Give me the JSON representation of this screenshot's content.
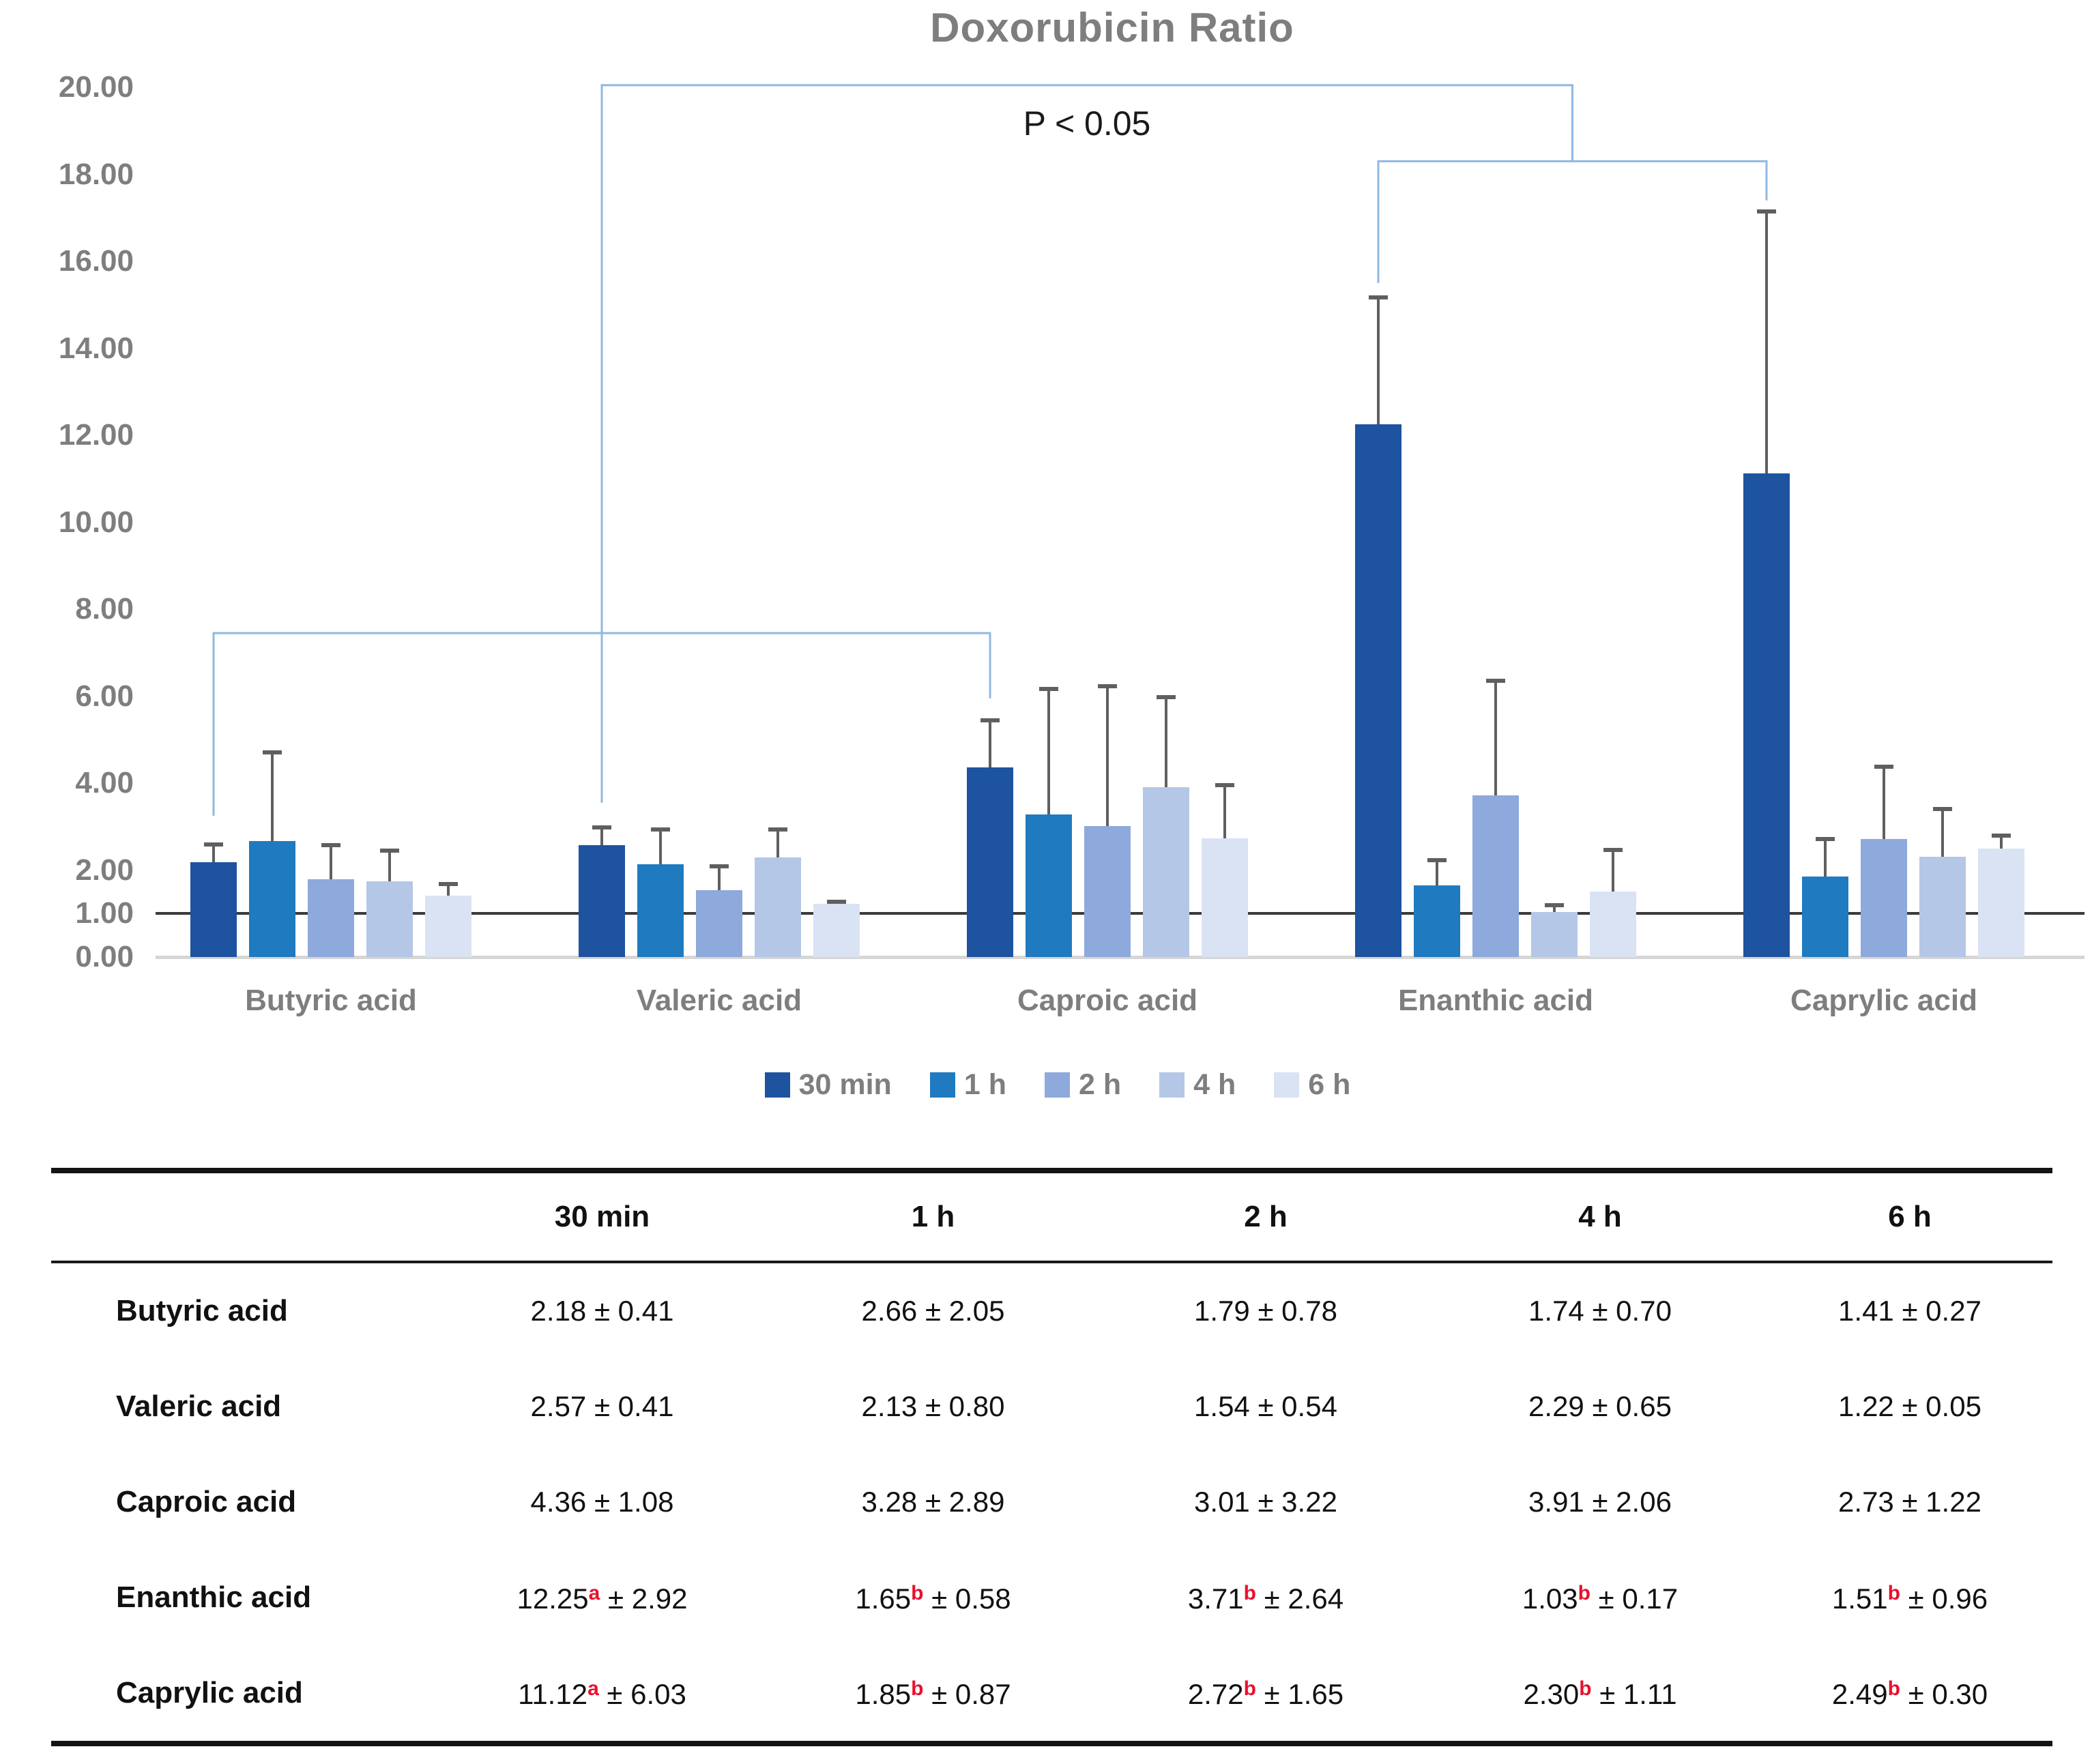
{
  "title": "Doxorubicin Ratio",
  "significance_label": "P < 0.05",
  "colors": {
    "axis_text": "#7e7e7e",
    "bracket": "#8fb8e0",
    "error_bar": "#5f5f5f",
    "reference_line": "#3a3a3a",
    "baseline": "#d6d6d6",
    "table_text": "#111111",
    "superscript": "#e8112d"
  },
  "chart_data": {
    "type": "bar",
    "title": "Doxorubicin Ratio",
    "categories": [
      "Butyric acid",
      "Valeric acid",
      "Caproic acid",
      "Enanthic acid",
      "Caprylic acid"
    ],
    "series": [
      {
        "name": "30 min",
        "color": "#1d539f",
        "values": [
          2.18,
          2.57,
          4.36,
          12.25,
          11.12
        ],
        "sd": [
          0.41,
          0.41,
          1.08,
          2.92,
          6.03
        ]
      },
      {
        "name": "1 h",
        "color": "#1f7ac0",
        "values": [
          2.66,
          2.13,
          3.28,
          1.65,
          1.85
        ],
        "sd": [
          2.05,
          0.8,
          2.89,
          0.58,
          0.87
        ]
      },
      {
        "name": "2 h",
        "color": "#8ea9db",
        "values": [
          1.79,
          1.54,
          3.01,
          3.71,
          2.72
        ],
        "sd": [
          0.78,
          0.54,
          3.22,
          2.64,
          1.65
        ]
      },
      {
        "name": "4 h",
        "color": "#b4c7e7",
        "values": [
          1.74,
          2.29,
          3.91,
          1.03,
          2.3
        ],
        "sd": [
          0.7,
          0.65,
          2.06,
          0.17,
          1.11
        ]
      },
      {
        "name": "6 h",
        "color": "#dae3f3",
        "values": [
          1.41,
          1.22,
          2.73,
          1.51,
          2.49
        ],
        "sd": [
          0.27,
          0.05,
          1.22,
          0.96,
          0.3
        ]
      }
    ],
    "y_ticks": [
      20,
      18,
      16,
      14,
      12,
      10,
      8,
      6,
      4,
      2,
      1,
      0
    ],
    "ylim": [
      0,
      20.6
    ],
    "reference_line": 1.0,
    "grid": false,
    "legend_position": "bottom",
    "error_bars": "mean + sd, upper only",
    "annotations": {
      "p_label": "P < 0.05",
      "brackets": [
        {
          "x1": {
            "cat": 0,
            "series": 0
          },
          "x2": {
            "cat": 2,
            "series": 0
          },
          "y": 7.45,
          "drop1": 3.25,
          "drop2": 5.95
        },
        {
          "x1": {
            "cat": 1,
            "series": 0
          },
          "x2_mid": [
            3,
            4
          ],
          "y": 20.05,
          "drop1": 3.55,
          "drop2": 18.3
        },
        {
          "x1": {
            "cat": 3,
            "series": 0
          },
          "x2": {
            "cat": 4,
            "series": 0
          },
          "y": 18.3,
          "drop1": 15.5,
          "drop2": 17.4
        }
      ]
    }
  },
  "table": {
    "columns": [
      "30 min",
      "1 h",
      "2 h",
      "4 h",
      "6 h"
    ],
    "plus_minus": "±",
    "rows": [
      {
        "label": "Butyric acid",
        "cells": [
          {
            "mean": "2.18",
            "sd": "0.41"
          },
          {
            "mean": "2.66",
            "sd": "2.05"
          },
          {
            "mean": "1.79",
            "sd": "0.78"
          },
          {
            "mean": "1.74",
            "sd": "0.70"
          },
          {
            "mean": "1.41",
            "sd": "0.27"
          }
        ]
      },
      {
        "label": "Valeric acid",
        "cells": [
          {
            "mean": "2.57",
            "sd": "0.41"
          },
          {
            "mean": "2.13",
            "sd": "0.80"
          },
          {
            "mean": "1.54",
            "sd": "0.54"
          },
          {
            "mean": "2.29",
            "sd": "0.65"
          },
          {
            "mean": "1.22",
            "sd": "0.05"
          }
        ]
      },
      {
        "label": "Caproic acid",
        "cells": [
          {
            "mean": "4.36",
            "sd": "1.08"
          },
          {
            "mean": "3.28",
            "sd": "2.89"
          },
          {
            "mean": "3.01",
            "sd": "3.22"
          },
          {
            "mean": "3.91",
            "sd": "2.06"
          },
          {
            "mean": "2.73",
            "sd": "1.22"
          }
        ]
      },
      {
        "label": "Enanthic acid",
        "cells": [
          {
            "mean": "12.25",
            "sup": "a",
            "sd": "2.92"
          },
          {
            "mean": "1.65",
            "sup": "b",
            "sd": "0.58"
          },
          {
            "mean": "3.71",
            "sup": "b",
            "sd": "2.64"
          },
          {
            "mean": "1.03",
            "sup": "b",
            "sd": "0.17"
          },
          {
            "mean": "1.51",
            "sup": "b",
            "sd": "0.96"
          }
        ]
      },
      {
        "label": "Caprylic acid",
        "cells": [
          {
            "mean": "11.12",
            "sup": "a",
            "sd": "6.03"
          },
          {
            "mean": "1.85",
            "sup": "b",
            "sd": "0.87"
          },
          {
            "mean": "2.72",
            "sup": "b",
            "sd": "1.65"
          },
          {
            "mean": "2.30",
            "sup": "b",
            "sd": "1.11"
          },
          {
            "mean": "2.49",
            "sup": "b",
            "sd": "0.30"
          }
        ]
      }
    ]
  }
}
